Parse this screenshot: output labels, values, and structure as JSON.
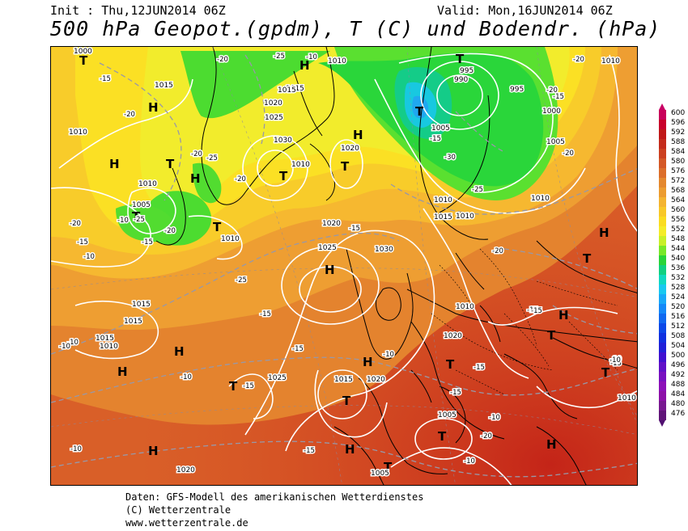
{
  "header": {
    "init": "Init : Thu,12JUN2014 06Z",
    "valid": "Valid: Mon,16JUN2014 06Z",
    "title": "500 hPa Geopot.(gpdm), T (C) und Bodendr. (hPa)"
  },
  "footer": {
    "line1": "Daten: GFS-Modell des amerikanischen Wetterdienstes",
    "line2": "(C) Wetterzentrale",
    "line3": "www.wetterzentrale.de"
  },
  "legend": {
    "values": [
      "600",
      "596",
      "592",
      "588",
      "584",
      "580",
      "576",
      "572",
      "568",
      "564",
      "560",
      "556",
      "552",
      "548",
      "544",
      "540",
      "536",
      "532",
      "528",
      "524",
      "520",
      "516",
      "512",
      "508",
      "504",
      "500",
      "496",
      "492",
      "488",
      "484",
      "480",
      "476"
    ],
    "colors": [
      "#c8005a",
      "#c8002a",
      "#c01818",
      "#c42c1c",
      "#cc4020",
      "#d45826",
      "#dc6e2a",
      "#e4882e",
      "#ec9c30",
      "#f4b430",
      "#f8c828",
      "#fadc20",
      "#f4ec28",
      "#c8f028",
      "#78e828",
      "#28d438",
      "#10d080",
      "#10d8c0",
      "#18c8f0",
      "#18a8f8",
      "#1488f8",
      "#1068f0",
      "#0c48e8",
      "#1030e0",
      "#2020d8",
      "#4010d0",
      "#6010c8",
      "#7810c0",
      "#8c10b8",
      "#8c10a8",
      "#781890",
      "#601478"
    ],
    "top_arrow_color": "#c80064",
    "bottom_arrow_color": "#501070"
  },
  "map": {
    "pressure_labels": [
      "1000",
      "1015",
      "1010",
      "1015",
      "1010",
      "1005",
      "1010",
      "1010",
      "1015",
      "1020",
      "1025",
      "1030",
      "1020",
      "1010",
      "1020",
      "1025",
      "1030",
      "1025",
      "1020",
      "1015",
      "1010",
      "1005",
      "995",
      "990",
      "995",
      "1000",
      "1005",
      "1010",
      "1015",
      "1010",
      "1015",
      "1015",
      "1010",
      "1020",
      "1010",
      "1015",
      "1005",
      "1010",
      "1005",
      "1020",
      "1010"
    ],
    "temp_labels": [
      "-15",
      "-20",
      "-25",
      "-20",
      "-20",
      "-25",
      "-20",
      "-25",
      "-15",
      "-20",
      "-25",
      "-20",
      "-15",
      "-10",
      "-10",
      "-15",
      "-20",
      "-15",
      "-10",
      "-10",
      "-15",
      "-10",
      "-15",
      "-15",
      "-20",
      "-15",
      "-20",
      "-15",
      "-10",
      "-15",
      "-10",
      "-10",
      "-20",
      "-15",
      "-10",
      "-10",
      "-15",
      "-15",
      "-15",
      "-10",
      "-10",
      "-10",
      "-25",
      "-30",
      "-20"
    ],
    "high_symbol": "H",
    "low_symbol": "T"
  }
}
